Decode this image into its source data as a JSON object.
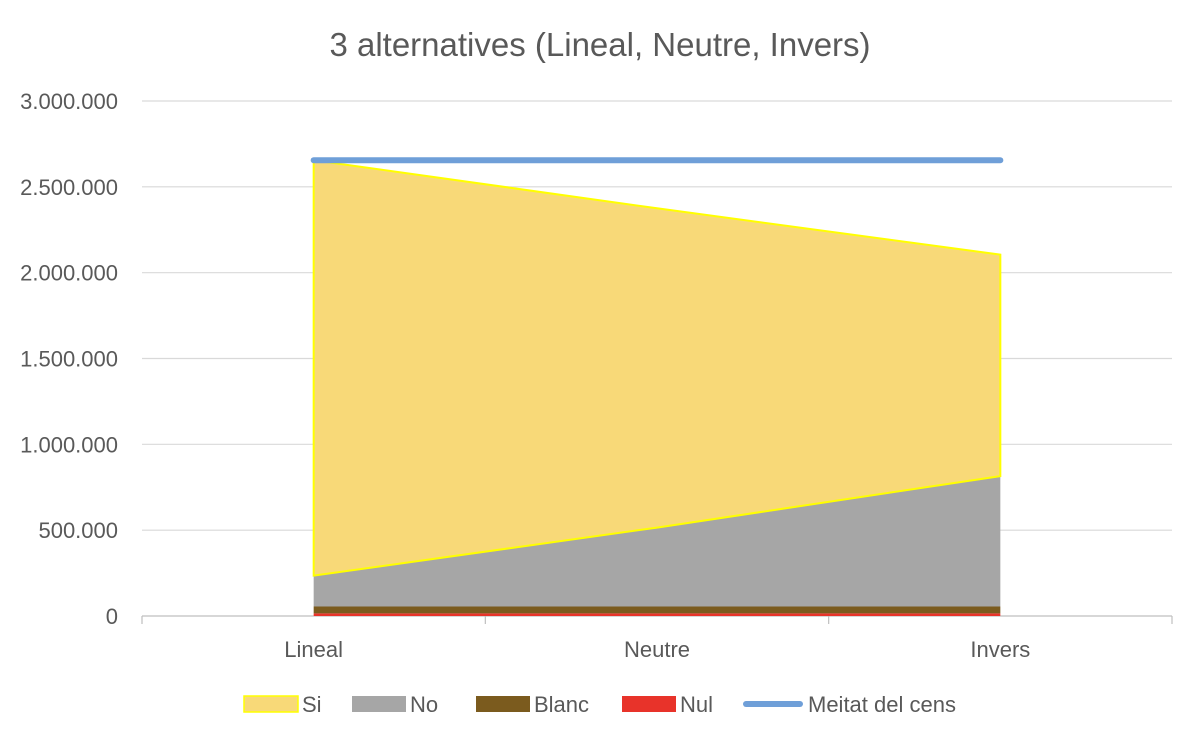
{
  "chart_data": {
    "type": "area",
    "title": "3 alternatives (Lineal, Neutre, Invers)",
    "categories": [
      "Lineal",
      "Neutre",
      "Invers"
    ],
    "ylim": [
      0,
      3000000
    ],
    "yticks": [
      0,
      500000,
      1000000,
      1500000,
      2000000,
      2500000,
      3000000
    ],
    "ytick_labels": [
      "0",
      "500.000",
      "1.000.000",
      "1.500.000",
      "2.000.000",
      "2.500.000",
      "3.000.000"
    ],
    "stacked": true,
    "series": [
      {
        "name": "Nul",
        "values": [
          15000,
          15000,
          15000
        ],
        "color": "#e8332a",
        "kind": "area"
      },
      {
        "name": "Blanc",
        "values": [
          40000,
          40000,
          40000
        ],
        "color": "#7b5b1e",
        "kind": "area"
      },
      {
        "name": "No",
        "values": [
          180000,
          460000,
          760000
        ],
        "color": "#a6a6a6",
        "kind": "area"
      },
      {
        "name": "Si",
        "values": [
          2420000,
          1860000,
          1290000
        ],
        "color": "#f8d978",
        "edge": "#ffff00",
        "kind": "area"
      },
      {
        "name": "Meitat del cens",
        "values": [
          2655000,
          2655000,
          2655000
        ],
        "color": "#6f9fd8",
        "kind": "line"
      }
    ],
    "legend_order": [
      "Si",
      "No",
      "Blanc",
      "Nul",
      "Meitat del cens"
    ],
    "legend_position": "bottom",
    "grid": true
  }
}
